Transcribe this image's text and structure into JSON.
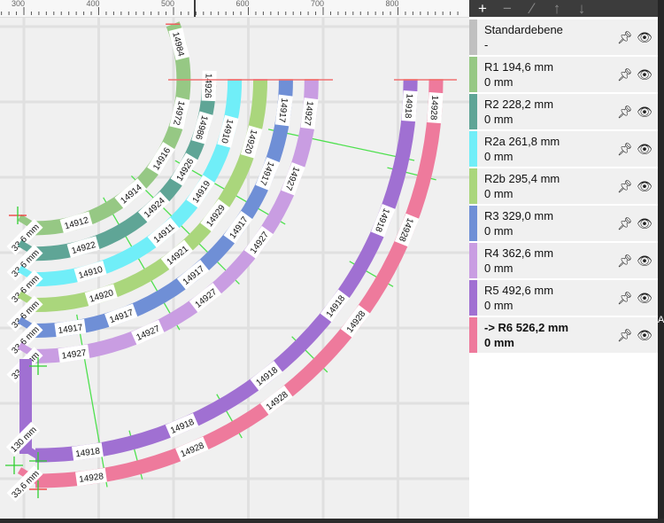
{
  "ruler": {
    "ticks": [
      "300",
      "400",
      "500",
      "600",
      "700",
      "800"
    ]
  },
  "toolbar": {
    "icons": [
      "plus-icon",
      "minus-icon",
      "edit-icon",
      "arrow-up-icon",
      "arrow-down-icon"
    ]
  },
  "layers": [
    {
      "name": "Standardebene",
      "sub": "-",
      "color": "#c0c0c0",
      "active": false
    },
    {
      "name": "R1 194,6 mm",
      "sub": "0 mm",
      "color": "#96c884",
      "active": false
    },
    {
      "name": "R2 228,2 mm",
      "sub": "0 mm",
      "color": "#5fa596",
      "active": false
    },
    {
      "name": "R2a 261,8 mm",
      "sub": "0 mm",
      "color": "#70eef8",
      "active": false
    },
    {
      "name": "R2b 295,4 mm",
      "sub": "0 mm",
      "color": "#aad67c",
      "active": false
    },
    {
      "name": "R3 329,0 mm",
      "sub": "0 mm",
      "color": "#6f8fd6",
      "active": false
    },
    {
      "name": "R4 362,6 mm",
      "sub": "0 mm",
      "color": "#c99de2",
      "active": false
    },
    {
      "name": "R5 492,6 mm",
      "sub": "0 mm",
      "color": "#a070d2",
      "active": false
    },
    {
      "name": "-> R6 526,2 mm",
      "sub": "0 mm",
      "color": "#ee7a9c",
      "active": true
    }
  ],
  "tracks": [
    {
      "layer": "R1",
      "radius_mm": 194.6,
      "labels": [
        "14912",
        "14914",
        "14916",
        "14972",
        "14984"
      ]
    },
    {
      "layer": "R2",
      "radius_mm": 228.2,
      "labels": [
        "14922",
        "14924",
        "14926",
        "14986",
        "14926"
      ]
    },
    {
      "layer": "R2a",
      "radius_mm": 261.8,
      "labels": [
        "14910",
        "14911",
        "14919",
        "14910"
      ]
    },
    {
      "layer": "R2b",
      "radius_mm": 295.4,
      "labels": [
        "14920",
        "14921",
        "14929",
        "14920"
      ]
    },
    {
      "layer": "R3",
      "radius_mm": 329.0,
      "labels": [
        "14917",
        "14917",
        "14917",
        "14917",
        "14917",
        "14917"
      ]
    },
    {
      "layer": "R4",
      "radius_mm": 362.6,
      "labels": [
        "14927",
        "14927",
        "14927",
        "14927",
        "14927",
        "14927"
      ]
    },
    {
      "layer": "R5",
      "radius_mm": 492.6,
      "labels": [
        "14918",
        "14918",
        "14918",
        "14918",
        "14918",
        "14918"
      ]
    },
    {
      "layer": "R6",
      "radius_mm": 526.2,
      "labels": [
        "14928",
        "14928",
        "14928",
        "14928",
        "14928",
        "14928"
      ]
    }
  ],
  "dimensions": {
    "offset": "33,6 mm",
    "straight": "130 mm"
  },
  "side_strip": "A"
}
